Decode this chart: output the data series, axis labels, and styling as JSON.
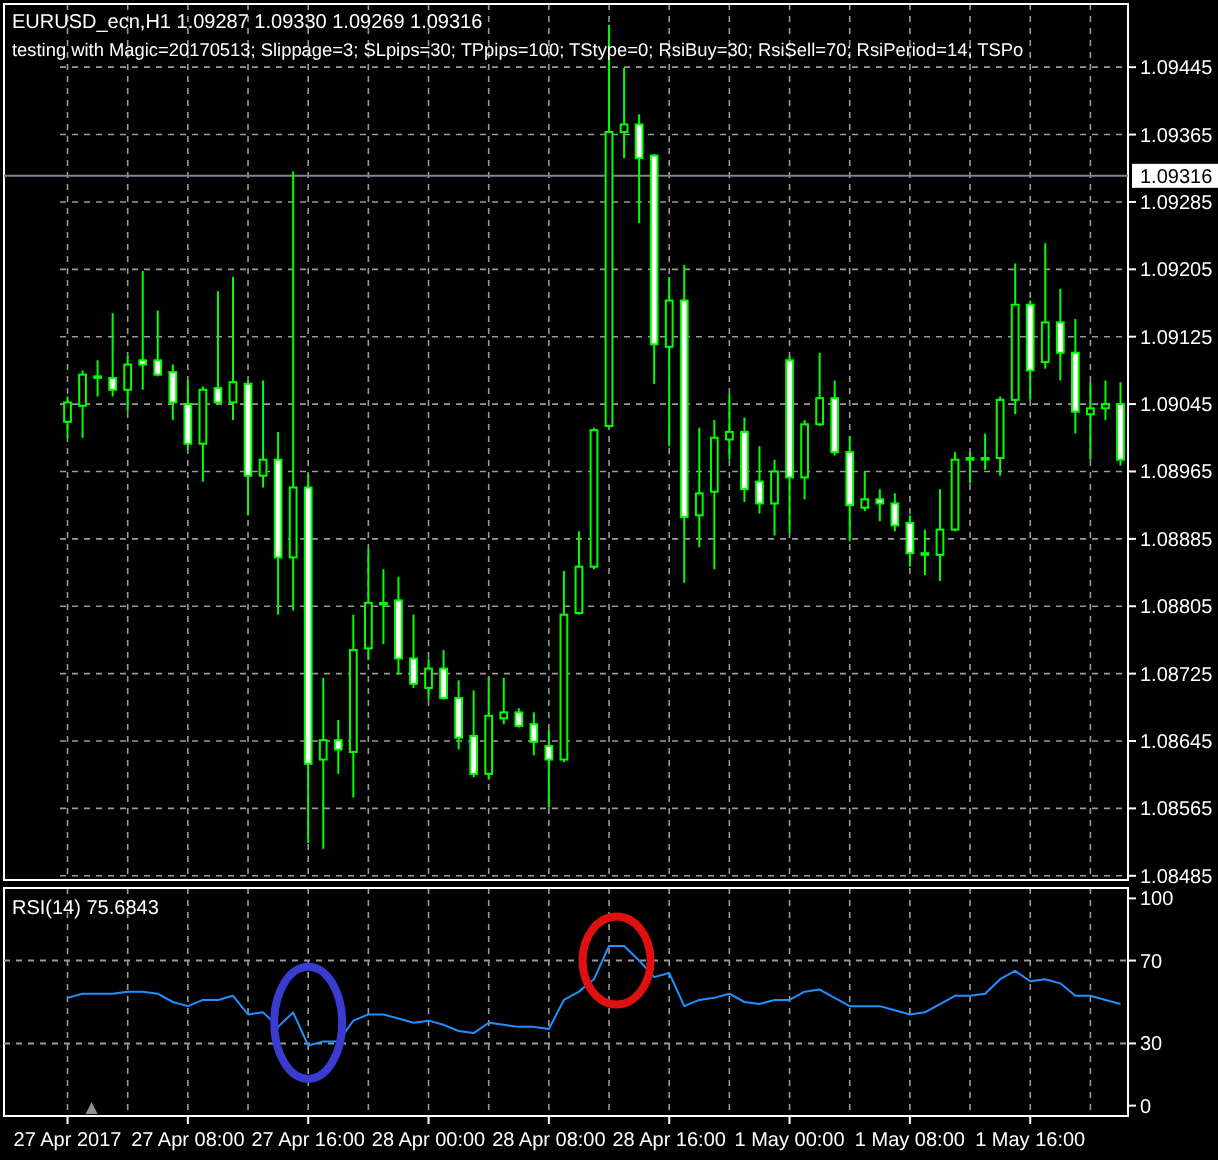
{
  "chart_data": [
    {
      "type": "candlestick",
      "title": "EURUSD_ecn,H1  1.09287 1.09330 1.09269 1.09316",
      "subtitle": "testing with Magic=20170513; Slippage=3; SLpips=30; TPpips=100; TStype=0; RsiBuy=30; RsiSell=70; RsiPeriod=14; TSPo",
      "categories": [
        null,
        null,
        null,
        null,
        null,
        null,
        null,
        null,
        null,
        null,
        null,
        null,
        null,
        null,
        null,
        null,
        null,
        null,
        null,
        null,
        null,
        null,
        null,
        null,
        null,
        null,
        null,
        null,
        null,
        null,
        null,
        null,
        null,
        null,
        null,
        null,
        null,
        null,
        null,
        null,
        null,
        null,
        null,
        null,
        null,
        null,
        null,
        null,
        null,
        null,
        null,
        null,
        null,
        null,
        null,
        null,
        null,
        null,
        null,
        null,
        null,
        null,
        null,
        null,
        null,
        null,
        null,
        null,
        null,
        null,
        null
      ],
      "ohlc": [
        [
          1.09024,
          1.09054,
          1.09005,
          1.09047
        ],
        [
          1.09043,
          1.09085,
          1.09005,
          1.0908
        ],
        [
          1.09078,
          1.09097,
          1.09054,
          1.09078
        ],
        [
          1.09076,
          1.09153,
          1.09054,
          1.09062
        ],
        [
          1.09062,
          1.09102,
          1.09036,
          1.09092
        ],
        [
          1.09097,
          1.09203,
          1.09062,
          1.09092
        ],
        [
          1.09097,
          1.09156,
          1.09078,
          1.0908
        ],
        [
          1.09083,
          1.09092,
          1.09026,
          1.09047
        ],
        [
          1.09045,
          1.09073,
          1.08991,
          1.08998
        ],
        [
          1.08998,
          1.09066,
          1.08953,
          1.09062
        ],
        [
          1.09064,
          1.09179,
          1.09045,
          1.09047
        ],
        [
          1.09047,
          1.09196,
          1.09026,
          1.09071
        ],
        [
          1.09069,
          1.09073,
          1.08913,
          1.0896
        ],
        [
          1.0896,
          1.09073,
          1.08946,
          1.08979
        ],
        [
          1.08979,
          1.09012,
          1.08795,
          1.08863
        ],
        [
          1.08863,
          1.09321,
          1.088,
          1.08946
        ],
        [
          1.08946,
          1.08962,
          1.08524,
          1.08618
        ],
        [
          1.08623,
          1.0872,
          1.08517,
          1.08646
        ],
        [
          1.08646,
          1.0867,
          1.08606,
          1.08635
        ],
        [
          1.08632,
          1.08795,
          1.08578,
          1.08753
        ],
        [
          1.08755,
          1.08873,
          1.08741,
          1.08809
        ],
        [
          1.08809,
          1.08849,
          1.0876,
          1.08809
        ],
        [
          1.08812,
          1.0884,
          1.08724,
          1.08743
        ],
        [
          1.08743,
          1.08795,
          1.08708,
          1.08713
        ],
        [
          1.08708,
          1.08743,
          1.08694,
          1.08731
        ],
        [
          1.08731,
          1.08753,
          1.08694,
          1.08696
        ],
        [
          1.08696,
          1.08717,
          1.08635,
          1.08649
        ],
        [
          1.08651,
          1.08705,
          1.08602,
          1.08606
        ],
        [
          1.08606,
          1.0872,
          1.08599,
          1.08675
        ],
        [
          1.08672,
          1.0872,
          1.08665,
          1.08679
        ],
        [
          1.08679,
          1.08684,
          1.08661,
          1.08663
        ],
        [
          1.08665,
          1.08679,
          1.08628,
          1.08644
        ],
        [
          1.08639,
          1.08658,
          1.08566,
          1.08623
        ],
        [
          1.08623,
          1.08847,
          1.0862,
          1.08795
        ],
        [
          1.08797,
          1.08894,
          1.08795,
          1.08852
        ],
        [
          1.08852,
          1.09017,
          1.08849,
          1.09014
        ],
        [
          1.09019,
          1.09495,
          1.09017,
          1.09368
        ],
        [
          1.09368,
          1.09444,
          1.09337,
          1.09377
        ],
        [
          1.09377,
          1.09389,
          1.0926,
          1.09337
        ],
        [
          1.0934,
          1.09342,
          1.09069,
          1.09116
        ],
        [
          1.09113,
          1.09196,
          1.08995,
          1.09168
        ],
        [
          1.09168,
          1.0921,
          1.08833,
          1.08911
        ],
        [
          1.08913,
          1.09017,
          1.08875,
          1.08939
        ],
        [
          1.08941,
          1.09026,
          1.08849,
          1.09005
        ],
        [
          1.09003,
          1.09057,
          1.08979,
          1.09012
        ],
        [
          1.09012,
          1.09029,
          1.08929,
          1.08944
        ],
        [
          1.08953,
          1.08995,
          1.08915,
          1.08927
        ],
        [
          1.08927,
          1.08979,
          1.08889,
          1.08965
        ],
        [
          1.09097,
          1.09102,
          1.08892,
          1.08958
        ],
        [
          1.08958,
          1.09026,
          1.08932,
          1.09021
        ],
        [
          1.09021,
          1.09106,
          1.09019,
          1.09052
        ],
        [
          1.09052,
          1.09073,
          1.08984,
          1.08988
        ],
        [
          1.08988,
          1.09007,
          1.08882,
          1.08925
        ],
        [
          1.08922,
          1.08965,
          1.08918,
          1.08932
        ],
        [
          1.08932,
          1.08944,
          1.08906,
          1.08927
        ],
        [
          1.08927,
          1.08939,
          1.08894,
          1.08901
        ],
        [
          1.08904,
          1.08913,
          1.08852,
          1.08868
        ],
        [
          1.08868,
          1.08896,
          1.08842,
          1.08868
        ],
        [
          1.08866,
          1.08944,
          1.08835,
          1.08896
        ],
        [
          1.08896,
          1.08988,
          1.08894,
          1.08979
        ],
        [
          1.08981,
          1.08988,
          1.08951,
          1.08981
        ],
        [
          1.08981,
          1.0901,
          1.08967,
          1.08981
        ],
        [
          1.08981,
          1.09054,
          1.0896,
          1.0905
        ],
        [
          1.0905,
          1.09212,
          1.09033,
          1.09163
        ],
        [
          1.09163,
          1.09168,
          1.0905,
          1.09085
        ],
        [
          1.09095,
          1.09236,
          1.09087,
          1.09142
        ],
        [
          1.09142,
          1.09182,
          1.09073,
          1.09106
        ],
        [
          1.09106,
          1.09146,
          1.0901,
          1.09036
        ],
        [
          1.09033,
          1.09071,
          1.08979,
          1.0904
        ],
        [
          1.0904,
          1.09073,
          1.09026,
          1.09045
        ],
        [
          1.09045,
          1.09071,
          1.08972,
          1.08979
        ]
      ],
      "color": "#00ff00",
      "ylim": [
        1.0848,
        1.0952
      ],
      "yticks": [
        1.09445,
        1.09365,
        1.09285,
        1.09205,
        1.09125,
        1.09045,
        1.08965,
        1.08885,
        1.08805,
        1.08725,
        1.08645,
        1.08565,
        1.08485
      ],
      "grid": true,
      "tick_labels": "y",
      "ref_lines": [
        {
          "axis": "y",
          "value": 1.09316,
          "label": "1.09316",
          "color": "#778899"
        }
      ]
    },
    {
      "type": "line",
      "title": "RSI(14) 75.6843",
      "categories": [
        "27 Apr 2017",
        null,
        null,
        null,
        null,
        null,
        null,
        null,
        "27 Apr 08:00",
        null,
        null,
        null,
        null,
        null,
        null,
        null,
        "27 Apr 16:00",
        null,
        null,
        null,
        null,
        null,
        null,
        null,
        "28 Apr 00:00",
        null,
        null,
        null,
        null,
        null,
        null,
        null,
        "28 Apr 08:00",
        null,
        null,
        null,
        null,
        null,
        null,
        null,
        "28 Apr 16:00",
        null,
        null,
        null,
        null,
        null,
        null,
        null,
        "1 May 00:00",
        null,
        null,
        null,
        null,
        null,
        null,
        null,
        "1 May 08:00",
        null,
        null,
        null,
        null,
        null,
        null,
        null,
        "1 May 16:00",
        null,
        null,
        null,
        null,
        null,
        null
      ],
      "series": [
        {
          "color": "#1e90ff",
          "values": [
            52,
            54,
            54,
            54,
            55,
            55,
            54,
            50,
            48,
            51,
            51,
            53,
            44,
            45,
            38,
            45,
            29,
            31,
            31,
            41,
            44,
            44,
            42,
            40,
            41,
            39,
            36,
            35,
            40,
            39,
            38,
            38,
            37,
            51,
            55,
            61,
            77,
            77,
            70,
            62,
            64,
            48,
            51,
            52,
            54,
            50,
            49,
            51,
            51,
            55,
            56,
            52,
            48,
            48,
            48,
            46,
            44,
            45,
            49,
            53,
            53,
            54,
            61,
            65,
            60,
            61,
            59,
            53,
            53,
            51,
            49
          ]
        }
      ],
      "ylim": [
        -5,
        105
      ],
      "yticks": [
        0,
        30,
        70,
        100
      ],
      "grid": "x",
      "ref_lines": [
        {
          "axis": "y",
          "value": 30,
          "line_style": "dashed"
        },
        {
          "axis": "y",
          "value": 70,
          "line_style": "dashed"
        }
      ]
    }
  ]
}
